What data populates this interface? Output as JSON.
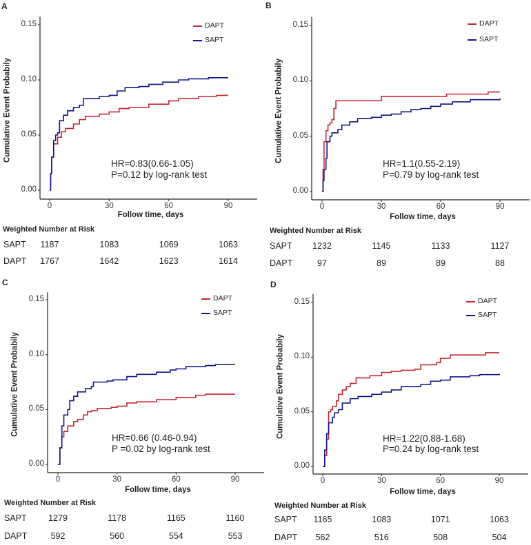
{
  "colors": {
    "DAPT": "#c4262e",
    "SAPT": "#14148c"
  },
  "chart_data": [
    {
      "type": "line",
      "panel": "A",
      "xlabel": "Follow time, days",
      "ylabel": "Cumulative Event Probabily",
      "xticks": [
        "0",
        "30",
        "60",
        "90"
      ],
      "yticks": [
        "0.00",
        "0.05",
        "0.10",
        "0.15"
      ],
      "xlim": [
        0,
        100
      ],
      "ylim": [
        0,
        0.15
      ],
      "grid": false,
      "legend": "top-right",
      "series": [
        {
          "name": "DAPT",
          "points": [
            [
              0,
              0
            ],
            [
              0.5,
              0.015
            ],
            [
              1,
              0.03
            ],
            [
              2,
              0.042
            ],
            [
              4,
              0.048
            ],
            [
              6,
              0.053
            ],
            [
              8,
              0.056
            ],
            [
              12,
              0.06
            ],
            [
              15,
              0.064
            ],
            [
              18,
              0.067
            ],
            [
              25,
              0.069
            ],
            [
              30,
              0.071
            ],
            [
              35,
              0.074
            ],
            [
              40,
              0.075
            ],
            [
              50,
              0.078
            ],
            [
              60,
              0.081
            ],
            [
              65,
              0.083
            ],
            [
              75,
              0.085
            ],
            [
              84,
              0.086
            ],
            [
              90,
              0.086
            ]
          ]
        },
        {
          "name": "SAPT",
          "points": [
            [
              0,
              0
            ],
            [
              0.5,
              0.015
            ],
            [
              1,
              0.03
            ],
            [
              2,
              0.045
            ],
            [
              3,
              0.05
            ],
            [
              4,
              0.052
            ],
            [
              5,
              0.063
            ],
            [
              7,
              0.068
            ],
            [
              9,
              0.072
            ],
            [
              12,
              0.075
            ],
            [
              15,
              0.077
            ],
            [
              17,
              0.083
            ],
            [
              25,
              0.085
            ],
            [
              30,
              0.086
            ],
            [
              34,
              0.09
            ],
            [
              38,
              0.093
            ],
            [
              45,
              0.094
            ],
            [
              50,
              0.096
            ],
            [
              57,
              0.098
            ],
            [
              65,
              0.1
            ],
            [
              70,
              0.101
            ],
            [
              80,
              0.102
            ],
            [
              90,
              0.102
            ]
          ]
        }
      ],
      "annotation": [
        "HR=0.83(0.66-1.05)",
        "P=0.12 by log-rank test"
      ],
      "risk_table": {
        "title": "Weighted Number at Risk",
        "rows": [
          {
            "label": "SAPT",
            "values": [
              "1187",
              "1083",
              "1069",
              "1063"
            ]
          },
          {
            "label": "DAPT",
            "values": [
              "1767",
              "1642",
              "1623",
              "1614"
            ]
          }
        ]
      }
    },
    {
      "type": "line",
      "panel": "B",
      "xlabel": "Follow time, days",
      "ylabel": "Cumulative Event Probabily",
      "xticks": [
        "0",
        "30",
        "60",
        "90"
      ],
      "yticks": [
        "0.00",
        "0.05",
        "0.10",
        "0.15"
      ],
      "xlim": [
        0,
        100
      ],
      "ylim": [
        0,
        0.15
      ],
      "grid": false,
      "legend": "top-right",
      "series": [
        {
          "name": "DAPT",
          "points": [
            [
              0,
              0
            ],
            [
              0.5,
              0.02
            ],
            [
              1,
              0.045
            ],
            [
              2,
              0.055
            ],
            [
              3,
              0.06
            ],
            [
              4,
              0.062
            ],
            [
              5,
              0.065
            ],
            [
              6,
              0.075
            ],
            [
              7,
              0.082
            ],
            [
              30,
              0.086
            ],
            [
              63,
              0.088
            ],
            [
              84,
              0.09
            ],
            [
              90,
              0.09
            ]
          ]
        },
        {
          "name": "SAPT",
          "points": [
            [
              0,
              0
            ],
            [
              0.5,
              0.01
            ],
            [
              1,
              0.02
            ],
            [
              2,
              0.03
            ],
            [
              2.5,
              0.045
            ],
            [
              4,
              0.05
            ],
            [
              5,
              0.053
            ],
            [
              8,
              0.056
            ],
            [
              10,
              0.06
            ],
            [
              14,
              0.063
            ],
            [
              18,
              0.066
            ],
            [
              25,
              0.067
            ],
            [
              30,
              0.069
            ],
            [
              35,
              0.07
            ],
            [
              40,
              0.072
            ],
            [
              45,
              0.074
            ],
            [
              50,
              0.075
            ],
            [
              55,
              0.077
            ],
            [
              60,
              0.079
            ],
            [
              66,
              0.081
            ],
            [
              75,
              0.083
            ],
            [
              90,
              0.084
            ]
          ]
        }
      ],
      "annotation": [
        "HR=1.1(0.55-2.19)",
        "P=0.79 by log-rank test"
      ],
      "risk_table": {
        "title": "Weighted Number at Risk",
        "rows": [
          {
            "label": "SAPT",
            "values": [
              "1232",
              "1145",
              "1133",
              "1127"
            ]
          },
          {
            "label": "DAPT",
            "values": [
              "97",
              "89",
              "89",
              "88"
            ]
          }
        ]
      }
    },
    {
      "type": "line",
      "panel": "C",
      "xlabel": "Follow time, days",
      "ylabel": "Cumulative Event Probabily",
      "xticks": [
        "0",
        "30",
        "60",
        "90"
      ],
      "yticks": [
        "0.00",
        "0.05",
        "0.10",
        "0.15"
      ],
      "xlim": [
        0,
        100
      ],
      "ylim": [
        0,
        0.15
      ],
      "grid": false,
      "legend": "top-right",
      "series": [
        {
          "name": "DAPT",
          "points": [
            [
              0,
              0
            ],
            [
              1,
              0.015
            ],
            [
              2,
              0.025
            ],
            [
              3,
              0.03
            ],
            [
              5,
              0.035
            ],
            [
              8,
              0.039
            ],
            [
              10,
              0.041
            ],
            [
              13,
              0.045
            ],
            [
              15,
              0.048
            ],
            [
              17,
              0.049
            ],
            [
              20,
              0.051
            ],
            [
              27,
              0.052
            ],
            [
              30,
              0.053
            ],
            [
              35,
              0.056
            ],
            [
              40,
              0.057
            ],
            [
              50,
              0.059
            ],
            [
              60,
              0.061
            ],
            [
              70,
              0.063
            ],
            [
              75,
              0.064
            ],
            [
              90,
              0.064
            ]
          ]
        },
        {
          "name": "SAPT",
          "points": [
            [
              0,
              0
            ],
            [
              1,
              0.015
            ],
            [
              2,
              0.035
            ],
            [
              3,
              0.045
            ],
            [
              5,
              0.05
            ],
            [
              6,
              0.058
            ],
            [
              8,
              0.062
            ],
            [
              10,
              0.066
            ],
            [
              14,
              0.069
            ],
            [
              17,
              0.071
            ],
            [
              18,
              0.075
            ],
            [
              25,
              0.076
            ],
            [
              28,
              0.077
            ],
            [
              35,
              0.08
            ],
            [
              40,
              0.082
            ],
            [
              50,
              0.084
            ],
            [
              57,
              0.086
            ],
            [
              60,
              0.087
            ],
            [
              65,
              0.089
            ],
            [
              75,
              0.09
            ],
            [
              80,
              0.091
            ],
            [
              90,
              0.091
            ]
          ]
        }
      ],
      "annotation": [
        "HR=0.66 (0.46-0.94)",
        "P =0.02 by log-rank test"
      ],
      "risk_table": {
        "title": "Weighted Number at Risk",
        "rows": [
          {
            "label": "SAPT",
            "values": [
              "1279",
              "1178",
              "1165",
              "1160"
            ]
          },
          {
            "label": "DAPT",
            "values": [
              "592",
              "560",
              "554",
              "553"
            ]
          }
        ]
      }
    },
    {
      "type": "line",
      "panel": "D",
      "xlabel": "Follow time, days",
      "ylabel": "Cumulative Event Probabily",
      "xticks": [
        "0",
        "30",
        "60",
        "90"
      ],
      "yticks": [
        "0.00",
        "0.05",
        "0.10",
        "0.15"
      ],
      "xlim": [
        0,
        100
      ],
      "ylim": [
        0,
        0.15
      ],
      "grid": false,
      "legend": "top-right",
      "series": [
        {
          "name": "DAPT",
          "points": [
            [
              0,
              0
            ],
            [
              1,
              0.01
            ],
            [
              2,
              0.025
            ],
            [
              3,
              0.05
            ],
            [
              4,
              0.052
            ],
            [
              5,
              0.055
            ],
            [
              7,
              0.06
            ],
            [
              8,
              0.066
            ],
            [
              10,
              0.07
            ],
            [
              12,
              0.073
            ],
            [
              14,
              0.076
            ],
            [
              17,
              0.081
            ],
            [
              24,
              0.083
            ],
            [
              30,
              0.086
            ],
            [
              35,
              0.087
            ],
            [
              40,
              0.088
            ],
            [
              47,
              0.089
            ],
            [
              50,
              0.093
            ],
            [
              58,
              0.095
            ],
            [
              60,
              0.099
            ],
            [
              65,
              0.102
            ],
            [
              83,
              0.104
            ],
            [
              90,
              0.104
            ]
          ]
        },
        {
          "name": "SAPT",
          "points": [
            [
              0,
              0
            ],
            [
              1,
              0.015
            ],
            [
              2,
              0.03
            ],
            [
              3,
              0.04
            ],
            [
              5,
              0.045
            ],
            [
              6,
              0.049
            ],
            [
              8,
              0.052
            ],
            [
              10,
              0.058
            ],
            [
              14,
              0.062
            ],
            [
              18,
              0.064
            ],
            [
              25,
              0.066
            ],
            [
              30,
              0.068
            ],
            [
              35,
              0.07
            ],
            [
              40,
              0.073
            ],
            [
              50,
              0.075
            ],
            [
              55,
              0.078
            ],
            [
              60,
              0.079
            ],
            [
              65,
              0.082
            ],
            [
              75,
              0.083
            ],
            [
              80,
              0.084
            ],
            [
              90,
              0.085
            ]
          ]
        }
      ],
      "annotation": [
        "HR=1.22(0.88-1.68)",
        "P=0.24 by log-rank test"
      ],
      "risk_table": {
        "title": "Weighted Number at Risk",
        "rows": [
          {
            "label": "SAPT",
            "values": [
              "1165",
              "1083",
              "1071",
              "1063"
            ]
          },
          {
            "label": "DAPT",
            "values": [
              "562",
              "516",
              "508",
              "504"
            ]
          }
        ]
      }
    }
  ]
}
